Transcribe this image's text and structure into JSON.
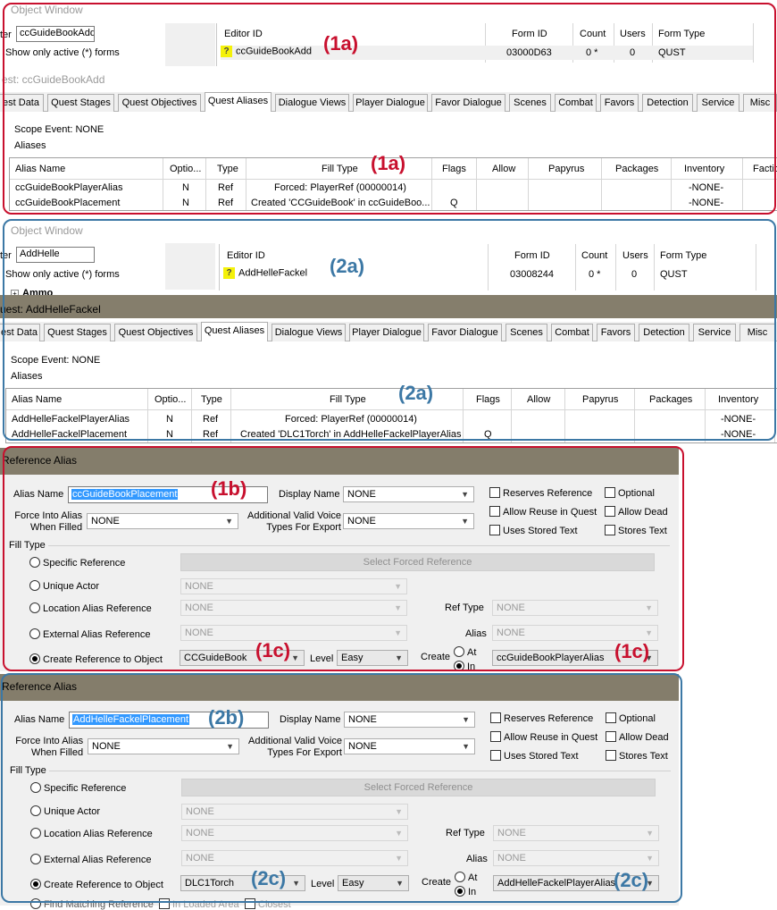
{
  "obj1": {
    "title": "Object Window",
    "filter_label": "ter",
    "filter_value": "ccGuideBookAdd",
    "show_only": "Show only active (*) forms",
    "headers": {
      "editor_id": "Editor ID",
      "form_id": "Form ID",
      "count": "Count",
      "users": "Users",
      "form_type": "Form Type"
    },
    "row": {
      "editor_id": "ccGuideBookAdd",
      "form_id": "03000D63",
      "count": "0 *",
      "users": "0",
      "form_type": "QUST"
    }
  },
  "quest1": {
    "header": "est: ccGuideBookAdd",
    "tabs": [
      "est Data",
      "Quest Stages",
      "Quest Objectives",
      "Quest Aliases",
      "Dialogue Views",
      "Player Dialogue",
      "Favor Dialogue",
      "Scenes",
      "Combat",
      "Favors",
      "Detection",
      "Service",
      "Misc"
    ],
    "scope": "Scope Event: NONE",
    "aliases_label": "Aliases",
    "columns": [
      "Alias Name",
      "Optio...",
      "Type",
      "Fill Type",
      "Flags",
      "Allow",
      "Papyrus",
      "Packages",
      "Inventory",
      "Factio"
    ],
    "rows": [
      {
        "name": "ccGuideBookPlayerAlias",
        "opt": "N",
        "type": "Ref",
        "fill": "Forced: PlayerRef (00000014)",
        "flags": "",
        "inventory": "-NONE-"
      },
      {
        "name": "ccGuideBookPlacement",
        "opt": "N",
        "type": "Ref",
        "fill": "Created 'CCGuideBook' in ccGuideBoo...",
        "flags": "Q",
        "inventory": "-NONE-"
      }
    ]
  },
  "obj2": {
    "title": "Object Window",
    "filter_label": "ter",
    "filter_value": "AddHelle",
    "show_only": "Show only active (*) forms",
    "tree_item": "Ammo",
    "headers": {
      "editor_id": "Editor ID",
      "form_id": "Form ID",
      "count": "Count",
      "users": "Users",
      "form_type": "Form Type"
    },
    "row": {
      "editor_id": "AddHelleFackel",
      "form_id": "03008244",
      "count": "0 *",
      "users": "0",
      "form_type": "QUST"
    }
  },
  "quest2": {
    "header": "uest: AddHelleFackel",
    "tabs": [
      "est Data",
      "Quest Stages",
      "Quest Objectives",
      "Quest Aliases",
      "Dialogue Views",
      "Player Dialogue",
      "Favor Dialogue",
      "Scenes",
      "Combat",
      "Favors",
      "Detection",
      "Service",
      "Misc"
    ],
    "scope": "Scope Event: NONE",
    "aliases_label": "Aliases",
    "columns": [
      "Alias Name",
      "Optio...",
      "Type",
      "Fill Type",
      "Flags",
      "Allow",
      "Papyrus",
      "Packages",
      "Inventory"
    ],
    "rows": [
      {
        "name": "AddHelleFackelPlayerAlias",
        "opt": "N",
        "type": "Ref",
        "fill": "Forced: PlayerRef (00000014)",
        "flags": "",
        "inventory": "-NONE-"
      },
      {
        "name": "AddHelleFackelPlacement",
        "opt": "N",
        "type": "Ref",
        "fill": "Created 'DLC1Torch' in AddHelleFackelPlayerAlias",
        "flags": "Q",
        "inventory": "-NONE-"
      }
    ]
  },
  "ref1": {
    "header": "Reference Alias",
    "alias_name_label": "Alias Name",
    "alias_name": "ccGuideBookPlacement",
    "display_name_label": "Display Name",
    "display_name": "NONE",
    "force_label_1": "Force Into Alias",
    "force_label_2": "When Filled",
    "force_value": "NONE",
    "voice_label_1": "Additional Valid Voice",
    "voice_label_2": "Types For Export",
    "voice_value": "NONE",
    "checks": [
      "Reserves Reference",
      "Allow Reuse in Quest",
      "Uses Stored Text",
      "Optional",
      "Allow Dead",
      "Stores Text"
    ],
    "fill_type_label": "Fill Type",
    "specific_ref": "Specific Reference",
    "select_forced": "Select Forced Reference",
    "unique_actor": "Unique Actor",
    "location_alias": "Location Alias Reference",
    "external_alias": "External Alias Reference",
    "create_ref": "Create Reference to Object",
    "none": "NONE",
    "ref_type_label": "Ref Type",
    "alias_label": "Alias",
    "object_value": "CCGuideBook",
    "level_label": "Level",
    "level_value": "Easy",
    "create_label": "Create",
    "at_label": "At",
    "in_label": "In",
    "create_alias_value": "ccGuideBookPlayerAlias"
  },
  "ref2": {
    "header": "Reference Alias",
    "alias_name_label": "Alias Name",
    "alias_name": "AddHelleFackelPlacement",
    "display_name_label": "Display Name",
    "display_name": "NONE",
    "force_label_1": "Force Into Alias",
    "force_label_2": "When Filled",
    "force_value": "NONE",
    "voice_label_1": "Additional Valid Voice",
    "voice_label_2": "Types For Export",
    "voice_value": "NONE",
    "checks": [
      "Reserves Reference",
      "Allow Reuse in Quest",
      "Uses Stored Text",
      "Optional",
      "Allow Dead",
      "Stores Text"
    ],
    "fill_type_label": "Fill Type",
    "specific_ref": "Specific Reference",
    "select_forced": "Select Forced Reference",
    "unique_actor": "Unique Actor",
    "location_alias": "Location Alias Reference",
    "external_alias": "External Alias Reference",
    "create_ref": "Create Reference to Object",
    "none": "NONE",
    "ref_type_label": "Ref Type",
    "alias_label": "Alias",
    "object_value": "DLC1Torch",
    "level_label": "Level",
    "level_value": "Easy",
    "create_label": "Create",
    "at_label": "At",
    "in_label": "In",
    "create_alias_value": "AddHelleFackelPlayerAlias",
    "partial_bottom_1": "Find Matching Reference",
    "partial_bottom_2": "In Loaded Area",
    "partial_bottom_3": "Closest"
  },
  "annotations": {
    "a1a": "(1a)",
    "a1b": "(1b)",
    "a1c": "(1c)",
    "a2a": "(2a)",
    "a2b": "(2b)",
    "a2c": "(2c)"
  },
  "colors": {
    "red": "#c8102e",
    "blue": "#3c78a5",
    "header_bar": "#847d6b",
    "icon_yellow": "#f4f10a",
    "selection": "#3399ff"
  }
}
